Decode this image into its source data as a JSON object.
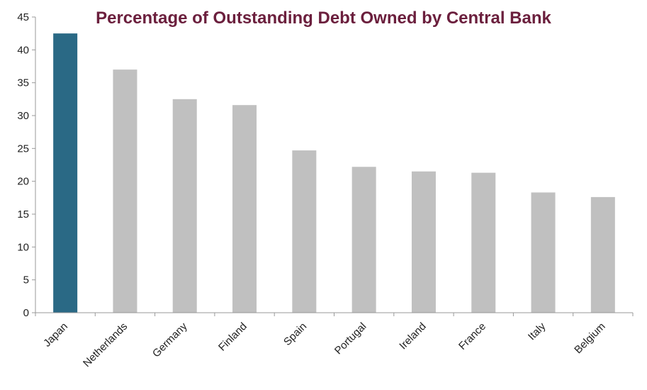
{
  "chart_data": {
    "type": "bar",
    "title": "Percentage of Outstanding Debt Owned by Central Bank",
    "xlabel": "",
    "ylabel": "",
    "categories": [
      "Japan",
      "Netherlands",
      "Germany",
      "Finland",
      "Spain",
      "Portugal",
      "Ireland",
      "France",
      "Italy",
      "Belgium"
    ],
    "values": [
      42.5,
      37,
      32.5,
      31.6,
      24.7,
      22.2,
      21.5,
      21.3,
      18.3,
      17.6
    ],
    "ylim": [
      0,
      45
    ],
    "yticks": [
      0,
      5,
      10,
      15,
      20,
      25,
      30,
      35,
      40,
      45
    ],
    "grid": false,
    "legend": "none",
    "colors": {
      "highlight": "#2a6985",
      "default": "#c0c0c0",
      "title": "#6b1f3d",
      "axis": "#999999"
    },
    "highlight_index": 0
  }
}
